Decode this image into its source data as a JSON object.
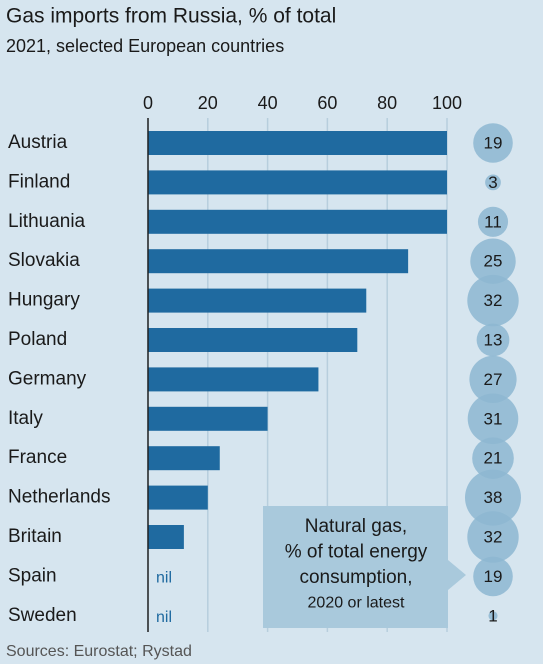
{
  "chart_data": {
    "type": "bar",
    "title": "Gas imports from Russia, % of total",
    "subtitle": "2021, selected European countries",
    "categories": [
      "Austria",
      "Finland",
      "Lithuania",
      "Slovakia",
      "Hungary",
      "Poland",
      "Germany",
      "Italy",
      "France",
      "Netherlands",
      "Britain",
      "Spain",
      "Sweden"
    ],
    "values": [
      100,
      100,
      100,
      87,
      73,
      70,
      57,
      40,
      24,
      20,
      12,
      0,
      0
    ],
    "value_labels": [
      null,
      null,
      null,
      null,
      null,
      null,
      null,
      null,
      null,
      null,
      null,
      "nil",
      "nil"
    ],
    "color": "#1f6aa0",
    "xlim": [
      0,
      100
    ],
    "xticks": [
      0,
      20,
      40,
      60,
      80,
      100
    ],
    "grid": true,
    "bubbles": {
      "name": [
        "Natural gas,",
        "% of total energy",
        "consumption,",
        "2020 or latest"
      ],
      "values": [
        19,
        3,
        11,
        25,
        32,
        13,
        27,
        31,
        21,
        38,
        32,
        19,
        1
      ],
      "color": "#8db7d1"
    },
    "source": "Sources: Eurostat; Rystad"
  }
}
